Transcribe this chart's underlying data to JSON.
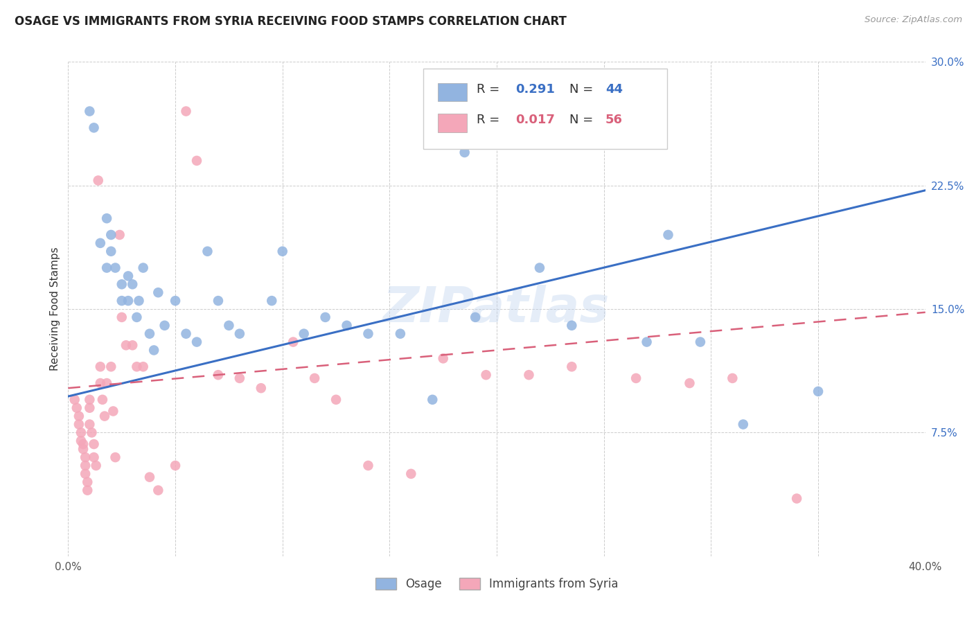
{
  "title": "OSAGE VS IMMIGRANTS FROM SYRIA RECEIVING FOOD STAMPS CORRELATION CHART",
  "source": "Source: ZipAtlas.com",
  "ylabel": "Receiving Food Stamps",
  "watermark": "ZIPatlas",
  "xlim": [
    0.0,
    0.4
  ],
  "ylim": [
    0.0,
    0.3
  ],
  "legend1_R": "0.291",
  "legend1_N": "44",
  "legend2_R": "0.017",
  "legend2_N": "56",
  "blue_color": "#92b4e0",
  "pink_color": "#f4a7b9",
  "line_blue": "#3a6fc4",
  "line_pink": "#d9607a",
  "blue_line_x": [
    0.0,
    0.4
  ],
  "blue_line_y": [
    0.097,
    0.222
  ],
  "pink_line_x": [
    0.0,
    0.4
  ],
  "pink_line_y": [
    0.102,
    0.148
  ],
  "osage_x": [
    0.01,
    0.012,
    0.015,
    0.018,
    0.02,
    0.02,
    0.022,
    0.025,
    0.025,
    0.028,
    0.03,
    0.032,
    0.033,
    0.035,
    0.038,
    0.04,
    0.042,
    0.045,
    0.05,
    0.055,
    0.06,
    0.065,
    0.07,
    0.075,
    0.08,
    0.095,
    0.1,
    0.11,
    0.12,
    0.13,
    0.14,
    0.155,
    0.17,
    0.19,
    0.22,
    0.235,
    0.27,
    0.295,
    0.315,
    0.35,
    0.018,
    0.028,
    0.185,
    0.28
  ],
  "osage_y": [
    0.27,
    0.26,
    0.19,
    0.175,
    0.185,
    0.195,
    0.175,
    0.165,
    0.155,
    0.155,
    0.165,
    0.145,
    0.155,
    0.175,
    0.135,
    0.125,
    0.16,
    0.14,
    0.155,
    0.135,
    0.13,
    0.185,
    0.155,
    0.14,
    0.135,
    0.155,
    0.185,
    0.135,
    0.145,
    0.14,
    0.135,
    0.135,
    0.095,
    0.145,
    0.175,
    0.14,
    0.13,
    0.13,
    0.08,
    0.1,
    0.205,
    0.17,
    0.245,
    0.195
  ],
  "syria_x": [
    0.003,
    0.004,
    0.005,
    0.005,
    0.006,
    0.006,
    0.007,
    0.007,
    0.008,
    0.008,
    0.008,
    0.009,
    0.009,
    0.01,
    0.01,
    0.01,
    0.011,
    0.012,
    0.012,
    0.013,
    0.014,
    0.015,
    0.015,
    0.016,
    0.017,
    0.018,
    0.02,
    0.021,
    0.022,
    0.024,
    0.025,
    0.027,
    0.03,
    0.032,
    0.035,
    0.038,
    0.042,
    0.05,
    0.055,
    0.06,
    0.07,
    0.08,
    0.09,
    0.105,
    0.115,
    0.125,
    0.14,
    0.16,
    0.175,
    0.195,
    0.215,
    0.235,
    0.265,
    0.29,
    0.31,
    0.34
  ],
  "syria_y": [
    0.095,
    0.09,
    0.085,
    0.08,
    0.075,
    0.07,
    0.068,
    0.065,
    0.06,
    0.055,
    0.05,
    0.045,
    0.04,
    0.095,
    0.09,
    0.08,
    0.075,
    0.068,
    0.06,
    0.055,
    0.228,
    0.115,
    0.105,
    0.095,
    0.085,
    0.105,
    0.115,
    0.088,
    0.06,
    0.195,
    0.145,
    0.128,
    0.128,
    0.115,
    0.115,
    0.048,
    0.04,
    0.055,
    0.27,
    0.24,
    0.11,
    0.108,
    0.102,
    0.13,
    0.108,
    0.095,
    0.055,
    0.05,
    0.12,
    0.11,
    0.11,
    0.115,
    0.108,
    0.105,
    0.108,
    0.035
  ]
}
